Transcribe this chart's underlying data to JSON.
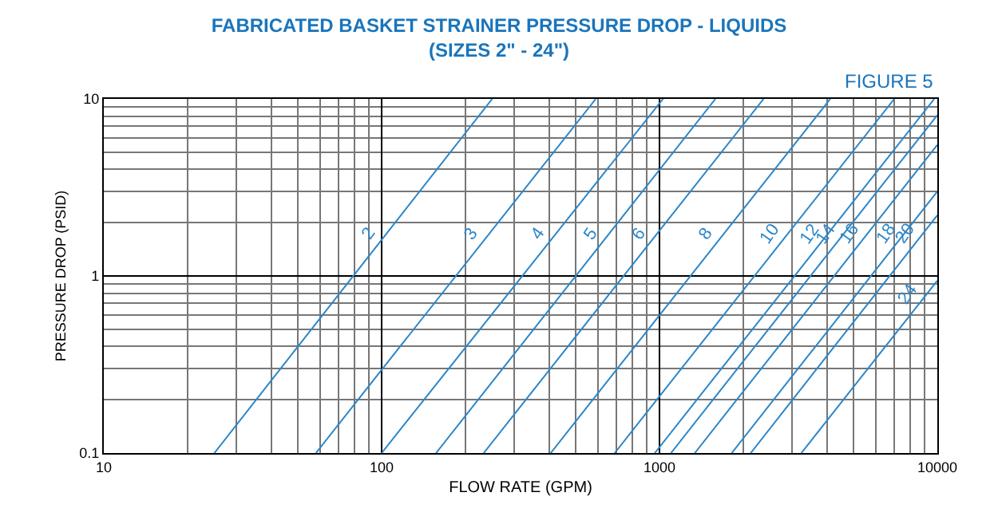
{
  "chart_data": {
    "type": "line",
    "title": "FABRICATED BASKET STRAINER PRESSURE DROP - LIQUIDS\n(SIZES 2\" - 24\")",
    "xlabel": "FLOW RATE (GPM)",
    "ylabel": "PRESSURE DROP (PSID)",
    "annotations": [
      "FIGURE 5"
    ],
    "log": "xy",
    "grid": true,
    "legend": false,
    "marker": "none",
    "line_style": "solid",
    "xlim": [
      10,
      10000
    ],
    "ylim": [
      0.1,
      10
    ],
    "xticks": [
      10,
      100,
      1000,
      10000
    ],
    "yticks": [
      0.1,
      1,
      10
    ],
    "series": [
      {
        "name": "2",
        "color": "#2b86c9",
        "x": [
          25,
          250
        ],
        "values": [
          0.1,
          10
        ]
      },
      {
        "name": "3",
        "color": "#2b86c9",
        "x": [
          58,
          590
        ],
        "values": [
          0.1,
          10
        ]
      },
      {
        "name": "4",
        "color": "#2b86c9",
        "x": [
          100,
          1030
        ],
        "values": [
          0.1,
          10
        ]
      },
      {
        "name": "5",
        "color": "#2b86c9",
        "x": [
          157,
          1590
        ],
        "values": [
          0.1,
          10
        ]
      },
      {
        "name": "6",
        "color": "#2b86c9",
        "x": [
          233,
          2370
        ],
        "values": [
          0.1,
          10
        ]
      },
      {
        "name": "8",
        "color": "#2b86c9",
        "x": [
          406,
          4120
        ],
        "values": [
          0.1,
          10
        ]
      },
      {
        "name": "10",
        "color": "#2b86c9",
        "x": [
          690,
          7000
        ],
        "values": [
          0.1,
          10
        ]
      },
      {
        "name": "12",
        "color": "#2b86c9",
        "x": [
          962,
          9750
        ],
        "values": [
          0.1,
          10
        ]
      },
      {
        "name": "14",
        "color": "#2b86c9",
        "x": [
          1100,
          10000
        ],
        "values": [
          0.1,
          8.1
        ]
      },
      {
        "name": "16",
        "color": "#2b86c9",
        "x": [
          1340,
          10000
        ],
        "values": [
          0.1,
          5.5
        ]
      },
      {
        "name": "18",
        "color": "#2b86c9",
        "x": [
          1820,
          10000
        ],
        "values": [
          0.1,
          3.0
        ]
      },
      {
        "name": "20",
        "color": "#2b86c9",
        "x": [
          2130,
          10000
        ],
        "values": [
          0.1,
          2.2
        ]
      },
      {
        "name": "24",
        "color": "#2b86c9",
        "x": [
          3240,
          10000
        ],
        "values": [
          0.1,
          0.94
        ]
      }
    ]
  }
}
